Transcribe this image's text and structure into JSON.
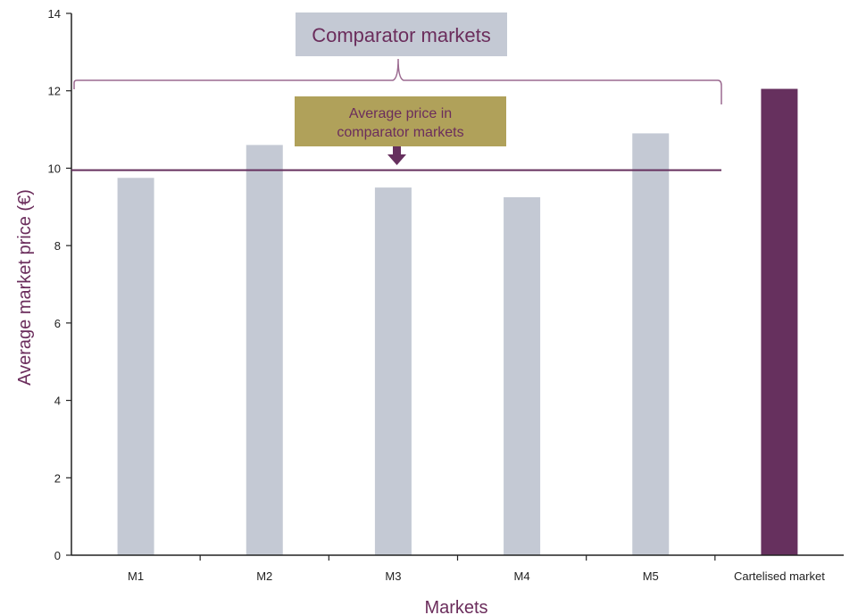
{
  "chart_data": {
    "type": "bar",
    "title": "",
    "xlabel": "Markets",
    "ylabel": "Average market price (€)",
    "ylim": [
      0,
      14
    ],
    "yticks": [
      0,
      2,
      4,
      6,
      8,
      10,
      12,
      14
    ],
    "categories": [
      "M1",
      "M2",
      "M3",
      "M4",
      "M5",
      "Cartelised market"
    ],
    "values": [
      9.75,
      10.6,
      9.5,
      9.25,
      10.9,
      12.05
    ],
    "bar_colors": [
      "#c4c9d4",
      "#c4c9d4",
      "#c4c9d4",
      "#c4c9d4",
      "#c4c9d4",
      "#66305e"
    ],
    "reference_line": {
      "value": 9.95,
      "color": "#66305e"
    },
    "grid": false,
    "annotations": {
      "comparator_label": "Comparator markets",
      "average_label_line1": "Average price in",
      "average_label_line2": "comparator markets"
    },
    "colors": {
      "comparator_box": "#c4c9d4",
      "average_box": "#b0a15a",
      "accent": "#66305e",
      "axis_title": "#6b2d5c"
    }
  }
}
